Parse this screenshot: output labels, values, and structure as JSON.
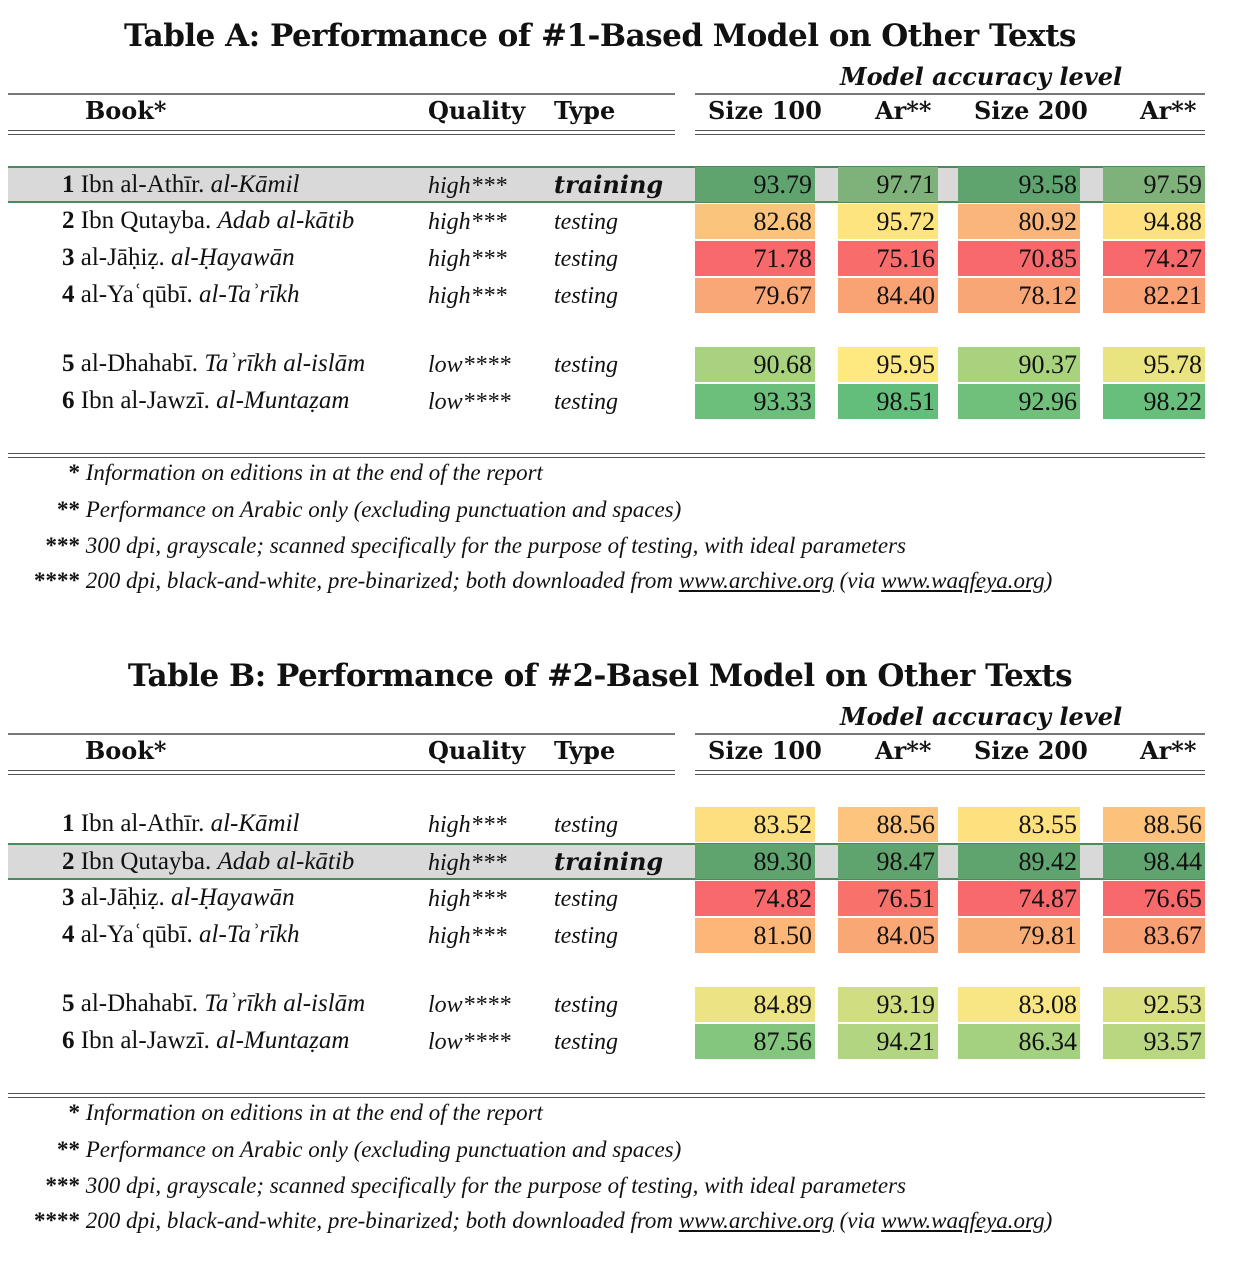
{
  "tables": [
    {
      "title": "Table A: Performance of #1-Based Model on Other Texts",
      "group_header": "Model accuracy level",
      "headers": {
        "book": "Book*",
        "quality": "Quality",
        "type": "Type",
        "c1": "Size 100",
        "c2": "Ar**",
        "c3": "Size 200",
        "c4": "Ar**"
      },
      "rows": [
        {
          "num": "1",
          "author": "Ibn al-Athīr.",
          "work": "al-Kāmil",
          "quality": "high***",
          "type": "training",
          "values": [
            "93.79",
            "97.71",
            "93.58",
            "97.59"
          ],
          "colors": [
            "#5fa36f",
            "#7fb27a",
            "#5fa36f",
            "#7fb27a"
          ]
        },
        {
          "num": "2",
          "author": "Ibn Qutayba.",
          "work": "Adab al-kātib",
          "quality": "high***",
          "type": "testing",
          "values": [
            "82.68",
            "95.72",
            "80.92",
            "94.88"
          ],
          "colors": [
            "#fbc47c",
            "#fde47f",
            "#f9b57a",
            "#fde07f"
          ]
        },
        {
          "num": "3",
          "author": "al-Jāḥiẓ.",
          "work": "al-Ḥayawān",
          "quality": "high***",
          "type": "testing",
          "values": [
            "71.78",
            "75.16",
            "70.85",
            "74.27"
          ],
          "colors": [
            "#f8696b",
            "#f86d6b",
            "#f8696b",
            "#f8696b"
          ]
        },
        {
          "num": "4",
          "author": "al-Yaʿqūbī.",
          "work": "al-Taʾrīkh",
          "quality": "high***",
          "type": "testing",
          "values": [
            "79.67",
            "84.40",
            "78.12",
            "82.21"
          ],
          "colors": [
            "#f9a777",
            "#f9a374",
            "#f8a676",
            "#f9a074"
          ]
        },
        {
          "num": "5",
          "author": "al-Dhahabī.",
          "work": "Taʾrīkh al-islām",
          "quality": "low****",
          "type": "testing",
          "values": [
            "90.68",
            "95.95",
            "90.37",
            "95.78"
          ],
          "colors": [
            "#a8d27f",
            "#fde97f",
            "#a9d27f",
            "#e9e47f"
          ]
        },
        {
          "num": "6",
          "author": "Ibn al-Jawzī.",
          "work": "al-Muntaẓam",
          "quality": "low****",
          "type": "testing",
          "values": [
            "93.33",
            "98.51",
            "92.96",
            "98.22"
          ],
          "colors": [
            "#6cbf7b",
            "#63be7b",
            "#70c07b",
            "#68bf7b"
          ]
        }
      ],
      "footnotes": [
        {
          "stars": "*",
          "text": "Information on editions in at the end of the report"
        },
        {
          "stars": "**",
          "text": "Performance on Arabic only (excluding punctuation and spaces)"
        },
        {
          "stars": "***",
          "text": "300 dpi, grayscale; scanned specifically for the purpose of testing, with ideal parameters"
        },
        {
          "stars": "****",
          "text": "200 dpi, black-and-white, pre-binarized; both downloaded from",
          "link1": "www.archive.org",
          "mid": "(via",
          "link2": "www.waqfeya.org",
          "end": ")"
        }
      ]
    },
    {
      "title": "Table B: Performance of #2-Basel Model on Other Texts",
      "group_header": "Model accuracy level",
      "headers": {
        "book": "Book*",
        "quality": "Quality",
        "type": "Type",
        "c1": "Size 100",
        "c2": "Ar**",
        "c3": "Size 200",
        "c4": "Ar**"
      },
      "rows": [
        {
          "num": "1",
          "author": "Ibn al-Athīr.",
          "work": "al-Kāmil",
          "quality": "high***",
          "type": "testing",
          "values": [
            "83.52",
            "88.56",
            "83.55",
            "88.56"
          ],
          "colors": [
            "#fedf80",
            "#fcc47c",
            "#fee17f",
            "#fcc27c"
          ]
        },
        {
          "num": "2",
          "author": "Ibn Qutayba.",
          "work": "Adab al-kātib",
          "quality": "high***",
          "type": "training",
          "values": [
            "89.30",
            "98.47",
            "89.42",
            "98.44"
          ],
          "colors": [
            "#5fa36f",
            "#5fa36f",
            "#5fa36f",
            "#5fa36f"
          ]
        },
        {
          "num": "3",
          "author": "al-Jāḥiẓ.",
          "work": "al-Ḥayawān",
          "quality": "high***",
          "type": "testing",
          "values": [
            "74.82",
            "76.51",
            "74.87",
            "76.65"
          ],
          "colors": [
            "#f8696b",
            "#f8726c",
            "#f8696b",
            "#f8696b"
          ]
        },
        {
          "num": "4",
          "author": "al-Yaʿqūbī.",
          "work": "al-Taʾrīkh",
          "quality": "high***",
          "type": "testing",
          "values": [
            "81.50",
            "84.05",
            "79.81",
            "83.67"
          ],
          "colors": [
            "#fbb678",
            "#f9a875",
            "#f9ad76",
            "#f8a074"
          ]
        },
        {
          "num": "5",
          "author": "al-Dhahabī.",
          "work": "Taʾrīkh al-islām",
          "quality": "low****",
          "type": "testing",
          "values": [
            "84.89",
            "93.19",
            "83.08",
            "92.53"
          ],
          "colors": [
            "#ece482",
            "#d0dd81",
            "#f7e683",
            "#dadf81"
          ]
        },
        {
          "num": "6",
          "author": "Ibn al-Jawzī.",
          "work": "al-Muntaẓam",
          "quality": "low****",
          "type": "testing",
          "values": [
            "87.56",
            "94.21",
            "86.34",
            "93.57"
          ],
          "colors": [
            "#84c67d",
            "#b1d580",
            "#a3d17f",
            "#b8d780"
          ]
        }
      ],
      "footnotes": [
        {
          "stars": "*",
          "text": "Information on editions in at the end of the report"
        },
        {
          "stars": "**",
          "text": "Performance on Arabic only (excluding punctuation and spaces)"
        },
        {
          "stars": "***",
          "text": "300 dpi, grayscale; scanned specifically for the purpose of testing, with ideal parameters"
        },
        {
          "stars": "****",
          "text": "200 dpi, black-and-white, pre-binarized; both downloaded from",
          "link1": "www.archive.org",
          "mid": "(via",
          "link2": "www.waqfeya.org",
          "end": ")"
        }
      ]
    }
  ]
}
